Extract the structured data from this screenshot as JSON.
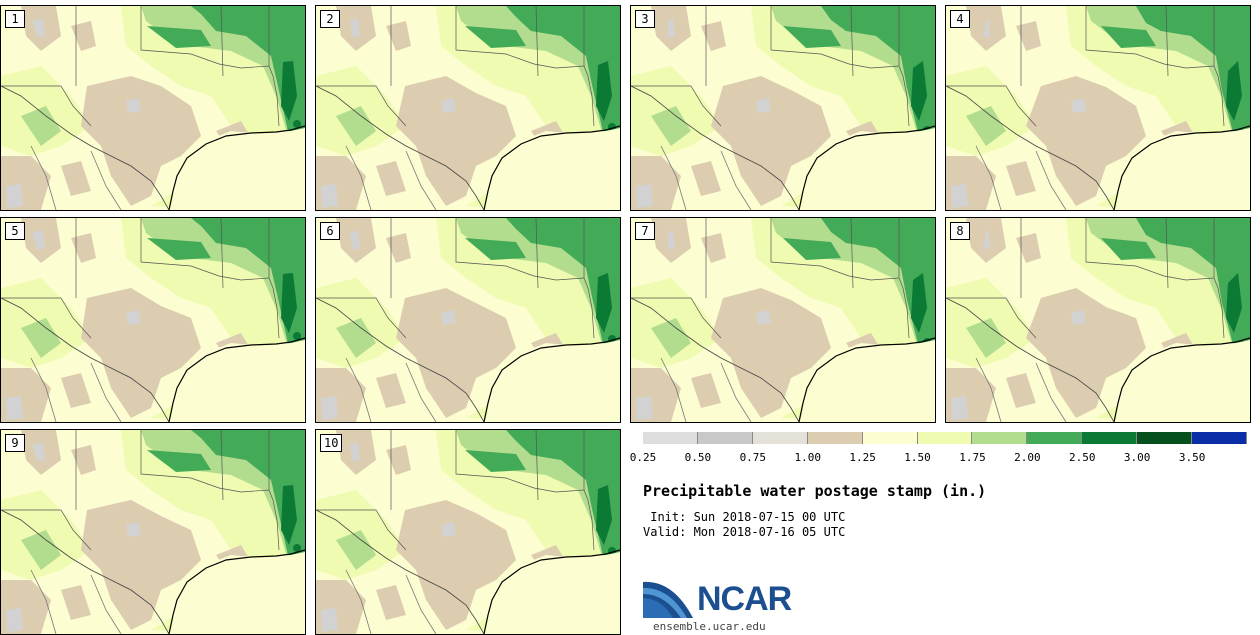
{
  "panels": [
    {
      "label": "1"
    },
    {
      "label": "2"
    },
    {
      "label": "3"
    },
    {
      "label": "4"
    },
    {
      "label": "5"
    },
    {
      "label": "6"
    },
    {
      "label": "7"
    },
    {
      "label": "8"
    },
    {
      "label": "9"
    },
    {
      "label": "10"
    }
  ],
  "legend": {
    "colors": [
      "#dedede",
      "#c8c8c8",
      "#e4e2d8",
      "#dccdb0",
      "#fdfdd2",
      "#eefbb0",
      "#b2dd8e",
      "#43aa58",
      "#0b7a34",
      "#06501e",
      "#0a2ea8"
    ],
    "ticks": [
      "0.25",
      "0.50",
      "0.75",
      "1.00",
      "1.25",
      "1.50",
      "1.75",
      "2.00",
      "2.50",
      "3.00",
      "3.50"
    ]
  },
  "title": "Precipitable water postage stamp (in.)",
  "init": " Init: Sun 2018-07-15 00 UTC",
  "valid": "Valid: Mon 2018-07-16 05 UTC",
  "logo": {
    "text": "NCAR",
    "site": "ensemble.ucar.edu"
  },
  "map_colors": {
    "base": "#fdfdd2",
    "light_green": "#eefbb0",
    "mid_green": "#b2dd8e",
    "green": "#43aa58",
    "dark_green": "#0b7a34",
    "tan": "#dccdb0",
    "gray": "#d2d2d2",
    "gulf": "#fdfdd2"
  }
}
